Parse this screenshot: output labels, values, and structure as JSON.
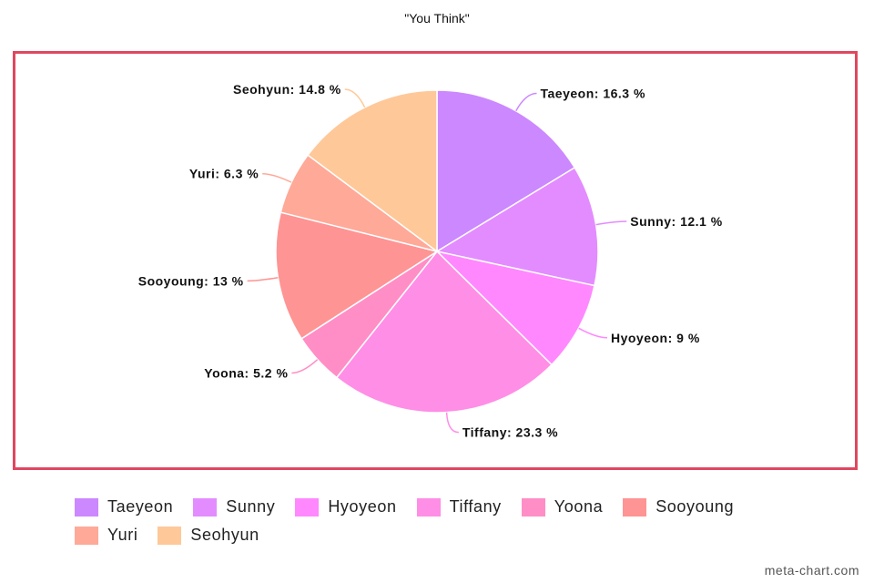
{
  "chart_data": {
    "type": "pie",
    "title": "\"You Think\"",
    "unit": "%",
    "categories": [
      "Taeyeon",
      "Sunny",
      "Hyoyeon",
      "Tiffany",
      "Yoona",
      "Sooyoung",
      "Yuri",
      "Seohyun"
    ],
    "values": [
      16.3,
      12.1,
      9,
      23.3,
      5.2,
      13,
      6.3,
      14.8
    ],
    "colors": [
      "#cc88ff",
      "#e38cff",
      "#ff88ff",
      "#ff8ee6",
      "#ff8ec6",
      "#ff9494",
      "#ffa998",
      "#ffc899"
    ],
    "legend_position": "bottom"
  },
  "watermark": "meta-chart.com"
}
